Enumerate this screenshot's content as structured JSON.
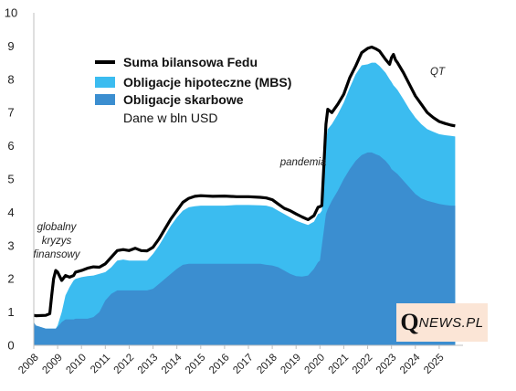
{
  "chart_data": {
    "type": "area",
    "units_note": "Dane w bln USD",
    "ylim": [
      0,
      10
    ],
    "yticks": [
      "0",
      "1",
      "2",
      "3",
      "4",
      "5",
      "6",
      "7",
      "8",
      "9",
      "10"
    ],
    "xlim": [
      2008.0,
      2026.0
    ],
    "xticks": [
      "2008",
      "2009",
      "2010",
      "2011",
      "2012",
      "2013",
      "2014",
      "2015",
      "2016",
      "2017",
      "2018",
      "2019",
      "2020",
      "2021",
      "2022",
      "2023",
      "2024",
      "2025"
    ],
    "x": [
      2008.0,
      2008.08,
      2008.5,
      2008.67,
      2008.75,
      2008.83,
      2008.92,
      2009.0,
      2009.17,
      2009.33,
      2009.5,
      2009.67,
      2009.75,
      2010.0,
      2010.25,
      2010.5,
      2010.75,
      2011.0,
      2011.25,
      2011.5,
      2011.75,
      2012.0,
      2012.25,
      2012.5,
      2012.75,
      2013.0,
      2013.25,
      2013.5,
      2013.75,
      2014.0,
      2014.25,
      2014.5,
      2014.75,
      2015.0,
      2015.5,
      2016.0,
      2016.5,
      2017.0,
      2017.5,
      2017.75,
      2018.0,
      2018.25,
      2018.5,
      2018.75,
      2019.0,
      2019.25,
      2019.5,
      2019.75,
      2019.92,
      2020.0,
      2020.08,
      2020.17,
      2020.25,
      2020.33,
      2020.5,
      2020.75,
      2021.0,
      2021.25,
      2021.5,
      2021.75,
      2022.0,
      2022.17,
      2022.33,
      2022.5,
      2022.75,
      2022.92,
      2023.0,
      2023.08,
      2023.17,
      2023.25,
      2023.5,
      2023.75,
      2024.0,
      2024.25,
      2024.5,
      2024.75,
      2025.0,
      2025.25,
      2025.5,
      2025.67
    ],
    "series": [
      {
        "name": "Suma bilansowa Fedu",
        "color": "#000000",
        "values": [
          0.9,
          0.89,
          0.9,
          0.95,
          1.5,
          2.0,
          2.25,
          2.2,
          1.95,
          2.1,
          2.05,
          2.1,
          2.2,
          2.25,
          2.32,
          2.36,
          2.35,
          2.45,
          2.65,
          2.85,
          2.88,
          2.85,
          2.92,
          2.85,
          2.84,
          2.95,
          3.2,
          3.5,
          3.8,
          4.05,
          4.3,
          4.42,
          4.48,
          4.5,
          4.48,
          4.49,
          4.47,
          4.47,
          4.45,
          4.43,
          4.38,
          4.25,
          4.12,
          4.05,
          3.95,
          3.86,
          3.78,
          3.9,
          4.15,
          4.17,
          4.2,
          5.5,
          6.65,
          7.1,
          7.0,
          7.25,
          7.55,
          8.05,
          8.4,
          8.8,
          8.93,
          8.97,
          8.92,
          8.85,
          8.6,
          8.45,
          8.65,
          8.75,
          8.58,
          8.5,
          8.2,
          7.85,
          7.5,
          7.25,
          7.0,
          6.85,
          6.73,
          6.67,
          6.62,
          6.6
        ]
      },
      {
        "name": "Obligacje hipoteczne (MBS)",
        "color": "#3bbcf0",
        "values": [
          0.7,
          0.6,
          0.5,
          0.5,
          0.5,
          0.5,
          0.5,
          0.6,
          1.0,
          1.5,
          1.75,
          1.95,
          2.0,
          2.05,
          2.08,
          2.1,
          2.15,
          2.2,
          2.35,
          2.55,
          2.58,
          2.55,
          2.55,
          2.55,
          2.55,
          2.75,
          3.0,
          3.3,
          3.6,
          3.85,
          4.05,
          4.15,
          4.18,
          4.2,
          4.2,
          4.2,
          4.22,
          4.22,
          4.21,
          4.2,
          4.15,
          4.05,
          3.95,
          3.85,
          3.75,
          3.68,
          3.62,
          3.72,
          3.95,
          3.97,
          4.05,
          5.2,
          6.15,
          6.5,
          6.65,
          6.95,
          7.3,
          7.75,
          8.15,
          8.42,
          8.45,
          8.5,
          8.5,
          8.4,
          8.2,
          8.0,
          7.92,
          7.82,
          7.75,
          7.68,
          7.4,
          7.1,
          6.85,
          6.65,
          6.5,
          6.42,
          6.35,
          6.32,
          6.3,
          6.28
        ]
      },
      {
        "name": "Obligacje skarbowe",
        "color": "#3b8ed0",
        "values": [
          0.7,
          0.6,
          0.5,
          0.5,
          0.5,
          0.5,
          0.5,
          0.55,
          0.7,
          0.78,
          0.78,
          0.78,
          0.8,
          0.8,
          0.8,
          0.85,
          1.0,
          1.35,
          1.55,
          1.65,
          1.65,
          1.65,
          1.65,
          1.65,
          1.65,
          1.7,
          1.85,
          2.0,
          2.15,
          2.3,
          2.42,
          2.45,
          2.45,
          2.45,
          2.45,
          2.45,
          2.45,
          2.45,
          2.45,
          2.42,
          2.4,
          2.35,
          2.25,
          2.15,
          2.08,
          2.07,
          2.1,
          2.3,
          2.5,
          2.55,
          3.0,
          3.5,
          3.95,
          4.1,
          4.35,
          4.65,
          5.0,
          5.3,
          5.55,
          5.72,
          5.8,
          5.8,
          5.75,
          5.7,
          5.55,
          5.4,
          5.3,
          5.25,
          5.2,
          5.15,
          4.95,
          4.75,
          4.55,
          4.42,
          4.35,
          4.3,
          4.25,
          4.22,
          4.2,
          4.2
        ]
      }
    ],
    "legend": {
      "placement": "top-left",
      "entries": [
        {
          "label": "Suma bilansowa Fedu",
          "style": "line"
        },
        {
          "label": "Obligacje hipoteczne (MBS)",
          "style": "fill"
        },
        {
          "label": "Obligacje skarbowe",
          "style": "fill"
        }
      ]
    },
    "annotations": [
      {
        "lines": [
          "globalny",
          "kryzys",
          "finansowy"
        ]
      },
      {
        "lines": [
          "pandemia"
        ]
      },
      {
        "lines": [
          "QT"
        ]
      }
    ],
    "grid": false
  },
  "logo": {
    "q": "Q",
    "rest": "NEWS.PL"
  }
}
